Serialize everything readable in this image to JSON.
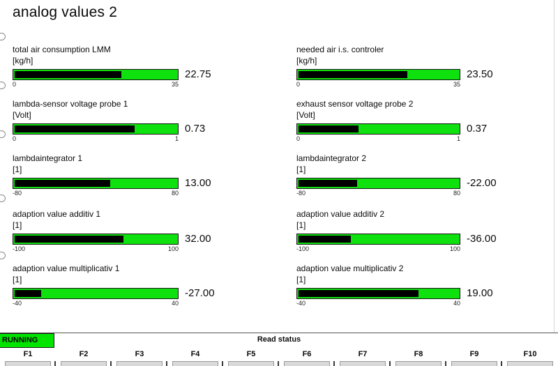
{
  "title": "analog values 2",
  "gauges": [
    {
      "label": "total air consumption LMM",
      "unit": "[kg/h]",
      "min": 0,
      "max": 35,
      "value": "22.75"
    },
    {
      "label": "needed air i.s. controler",
      "unit": "[kg/h]",
      "min": 0,
      "max": 35,
      "value": "23.50"
    },
    {
      "label": "lambda-sensor voltage probe 1",
      "unit": "[Volt]",
      "min": 0,
      "max": 1,
      "value": "0.73"
    },
    {
      "label": "exhaust sensor voltage probe 2",
      "unit": "[Volt]",
      "min": 0,
      "max": 1,
      "value": "0.37"
    },
    {
      "label": "lambdaintegrator 1",
      "unit": "[1]",
      "min": -80,
      "max": 80,
      "value": "13.00"
    },
    {
      "label": "lambdaintegrator 2",
      "unit": "[1]",
      "min": -80,
      "max": 80,
      "value": "-22.00"
    },
    {
      "label": "adaption value additiv 1",
      "unit": "[1]",
      "min": -100,
      "max": 100,
      "value": "32.00"
    },
    {
      "label": "adaption value additiv 2",
      "unit": "[1]",
      "min": -100,
      "max": 100,
      "value": "-36.00"
    },
    {
      "label": "adaption value multiplicativ 1",
      "unit": "[1]",
      "min": -40,
      "max": 40,
      "value": "-27.00"
    },
    {
      "label": "adaption value multiplicativ 2",
      "unit": "[1]",
      "min": -40,
      "max": 40,
      "value": "19.00"
    }
  ],
  "status_bar": {
    "running_label": "RUNNING",
    "center_label": "Read status"
  },
  "fkeys": [
    "F1",
    "F2",
    "F3",
    "F4",
    "F5",
    "F6",
    "F7",
    "F8",
    "F9",
    "F10"
  ],
  "colors": {
    "gauge_green": "#0ee10e",
    "gauge_fill": "#000000",
    "running_bg": "#00e400",
    "button_gray": "#d9d9d9"
  }
}
